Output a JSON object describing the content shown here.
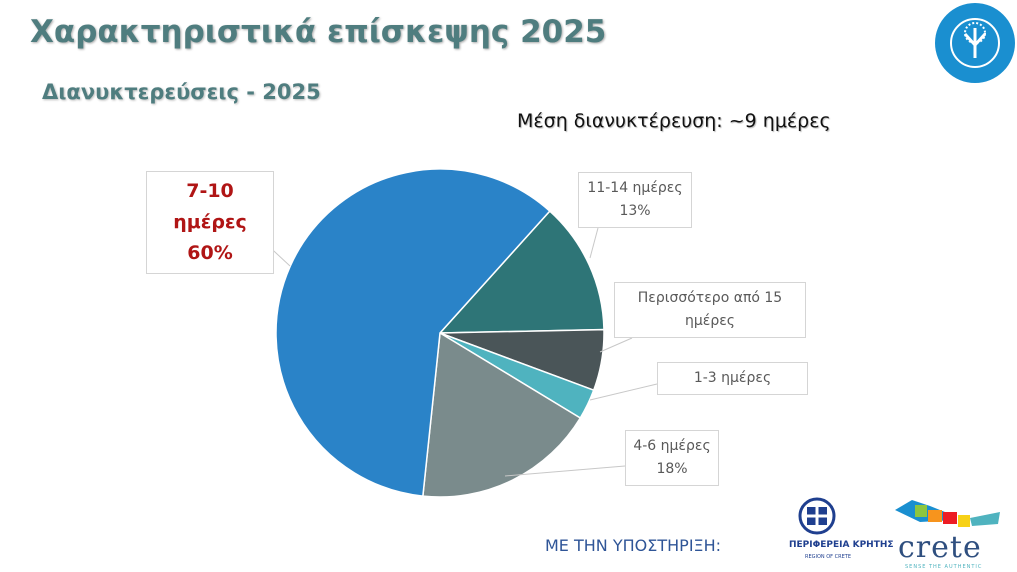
{
  "chart_data": {
    "type": "pie",
    "title": "Χαρακτηριστικά επίσκεψης 2025",
    "subtitle": "Διανυκτερεύσεις - 2025",
    "annotation": "Μέση διανυκτέρευση: ~9 ημέρες",
    "categories": [
      "11-14 ημέρες",
      "Περισσότερο από 15 ημέρες",
      "1-3 ημέρες",
      "4-6 ημέρες",
      "7-10 ημέρες"
    ],
    "values": [
      13,
      6,
      3,
      18,
      60
    ],
    "value_labels": [
      "13%",
      null,
      null,
      "18%",
      "60%"
    ],
    "colors": [
      "#2e7577",
      "#4a5558",
      "#4fb3bf",
      "#7a8b8c",
      "#2a83c8"
    ]
  },
  "footer": {
    "support": "ΜΕ ΤΗΝ ΥΠΟΣΤΗΡΙΞΗ:",
    "region": "ΠΕΡΙΦΕΡΕΙΑ ΚΡΗΤΗΣ",
    "region_en": "REGION OF CRETE",
    "brand": "crete",
    "tagline": "SENSE THE AUTHENTIC"
  }
}
